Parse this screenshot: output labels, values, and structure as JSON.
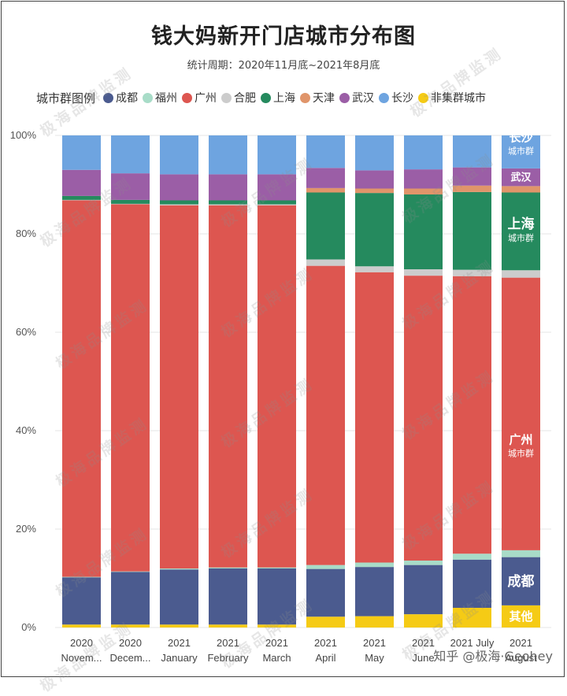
{
  "title": "钱大妈新开门店城市分布图",
  "subtitle": "统计周期：2020年11月底~2021年8月底",
  "legend_title": "城市群图例",
  "watermark": "极海品牌监测",
  "credit": "知乎 @极海·Geohey",
  "colors": {
    "成都": "#4b5b8f",
    "福州": "#a8dcc8",
    "广州": "#dd5650",
    "合肥": "#cccccc",
    "上海": "#258a5e",
    "天津": "#e0956a",
    "武汉": "#9b5ea6",
    "长沙": "#6ea4e0",
    "非集群城市": "#f5cb15"
  },
  "chart_data": {
    "type": "bar",
    "stacked": true,
    "title": "钱大妈新开门店城市分布图",
    "ylim": [
      0,
      100
    ],
    "yticks": [
      "0%",
      "20%",
      "40%",
      "60%",
      "80%",
      "100%"
    ],
    "categories": [
      [
        "2020",
        "Novem..."
      ],
      [
        "2020",
        "Decem..."
      ],
      [
        "2021",
        "January"
      ],
      [
        "2021",
        "February"
      ],
      [
        "2021",
        "March"
      ],
      [
        "2021",
        "April"
      ],
      [
        "2021",
        "May"
      ],
      [
        "2021",
        "June"
      ],
      [
        "2021 July",
        ""
      ],
      [
        "2021",
        "August"
      ]
    ],
    "series": [
      {
        "name": "非集群城市",
        "values": [
          0.6,
          0.6,
          0.6,
          0.6,
          0.6,
          2.2,
          2.3,
          2.7,
          4.0,
          4.5
        ]
      },
      {
        "name": "成都",
        "values": [
          9.6,
          10.7,
          11.2,
          11.4,
          11.4,
          9.7,
          10.0,
          10.0,
          9.8,
          9.8
        ]
      },
      {
        "name": "福州",
        "values": [
          0.1,
          0.1,
          0.2,
          0.2,
          0.2,
          0.8,
          0.9,
          0.9,
          1.2,
          1.4
        ]
      },
      {
        "name": "广州",
        "values": [
          76.5,
          74.6,
          73.8,
          73.6,
          73.6,
          60.8,
          59.0,
          57.9,
          56.4,
          55.4
        ]
      },
      {
        "name": "合肥",
        "values": [
          0.1,
          0.1,
          0.2,
          0.2,
          0.2,
          1.3,
          1.2,
          1.3,
          1.3,
          1.5
        ]
      },
      {
        "name": "上海",
        "values": [
          0.8,
          0.8,
          0.8,
          0.8,
          0.8,
          13.6,
          14.9,
          15.2,
          15.8,
          15.8
        ]
      },
      {
        "name": "天津",
        "values": [
          0,
          0,
          0,
          0,
          0,
          0.9,
          0.9,
          1.2,
          1.3,
          1.3
        ]
      },
      {
        "name": "武汉",
        "values": [
          5.3,
          5.4,
          5.3,
          5.3,
          5.3,
          4.1,
          3.7,
          3.9,
          3.7,
          3.6
        ]
      },
      {
        "name": "长沙",
        "values": [
          7.0,
          7.7,
          7.9,
          7.9,
          7.9,
          6.6,
          7.1,
          6.9,
          6.5,
          6.7
        ]
      }
    ],
    "annotations": [
      {
        "category_index": 9,
        "series": "长沙",
        "text": "长沙",
        "sub": "城市群",
        "size": "medium"
      },
      {
        "category_index": 9,
        "series": "武汉",
        "text": "武汉",
        "sub": "",
        "size": "small"
      },
      {
        "category_index": 9,
        "series": "上海",
        "text": "上海",
        "sub": "城市群",
        "size": "large"
      },
      {
        "category_index": 9,
        "series": "广州",
        "text": "广州",
        "sub": "城市群",
        "size": "medium"
      },
      {
        "category_index": 9,
        "series": "成都",
        "text": "成都",
        "sub": "",
        "size": "large"
      },
      {
        "category_index": 9,
        "series": "非集群城市",
        "text": "其他",
        "sub": "",
        "size": "medium"
      }
    ]
  },
  "legend_items": [
    {
      "name": "成都",
      "color": "#4b5b8f"
    },
    {
      "name": "福州",
      "color": "#a8dcc8"
    },
    {
      "name": "广州",
      "color": "#dd5650"
    },
    {
      "name": "合肥",
      "color": "#cccccc"
    },
    {
      "name": "上海",
      "color": "#258a5e"
    },
    {
      "name": "天津",
      "color": "#e0956a"
    },
    {
      "name": "武汉",
      "color": "#9b5ea6"
    },
    {
      "name": "长沙",
      "color": "#6ea4e0"
    },
    {
      "name": "非集群城市",
      "color": "#f5cb15"
    }
  ]
}
